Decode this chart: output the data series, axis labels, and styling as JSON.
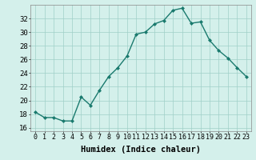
{
  "x": [
    0,
    1,
    2,
    3,
    4,
    5,
    6,
    7,
    8,
    9,
    10,
    11,
    12,
    13,
    14,
    15,
    16,
    17,
    18,
    19,
    20,
    21,
    22,
    23
  ],
  "y": [
    18.3,
    17.5,
    17.5,
    17.0,
    17.0,
    20.5,
    19.3,
    21.5,
    23.5,
    24.8,
    26.5,
    29.7,
    30.0,
    31.2,
    31.7,
    33.2,
    33.5,
    31.3,
    31.5,
    28.8,
    27.3,
    26.2,
    24.8,
    23.5
  ],
  "line_color": "#1a7a6e",
  "marker": "D",
  "marker_size": 2.0,
  "bg_color": "#d4f0eb",
  "grid_color": "#a0cfc8",
  "xlabel": "Humidex (Indice chaleur)",
  "ylim": [
    15.5,
    34.0
  ],
  "yticks": [
    16,
    18,
    20,
    22,
    24,
    26,
    28,
    30,
    32
  ],
  "xticks": [
    0,
    1,
    2,
    3,
    4,
    5,
    6,
    7,
    8,
    9,
    10,
    11,
    12,
    13,
    14,
    15,
    16,
    17,
    18,
    19,
    20,
    21,
    22,
    23
  ],
  "xlabel_fontsize": 7.5,
  "ytick_fontsize": 6.5,
  "xtick_fontsize": 6.0,
  "linewidth": 1.0
}
